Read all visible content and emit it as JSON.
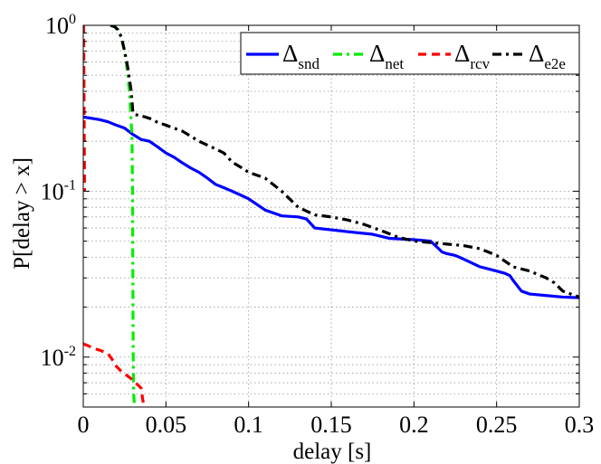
{
  "chart_data": {
    "type": "line",
    "title": "",
    "xlabel": "delay [s]",
    "ylabel": "P[delay > x]",
    "xlim": [
      0,
      0.3
    ],
    "ylim": [
      0.005,
      1
    ],
    "yscale": "log",
    "grid": true,
    "legend_position": "top-right",
    "x_ticks": [
      0,
      0.05,
      0.1,
      0.15,
      0.2,
      0.25,
      0.3
    ],
    "x_tick_labels": [
      "0",
      "0.05",
      "0.1",
      "0.15",
      "0.2",
      "0.25",
      "0.3"
    ],
    "y_ticks": [
      0.01,
      0.1,
      1
    ],
    "y_tick_labels": [
      {
        "base": "10",
        "exp": "-2"
      },
      {
        "base": "10",
        "exp": "-1"
      },
      {
        "base": "10",
        "exp": "0"
      }
    ],
    "series": [
      {
        "name": "snd",
        "name_symbol": "Δ",
        "color": "#0000ff",
        "dash": "solid",
        "x": [
          0,
          0.005,
          0.01,
          0.015,
          0.02,
          0.025,
          0.03,
          0.035,
          0.04,
          0.045,
          0.05,
          0.055,
          0.06,
          0.065,
          0.07,
          0.075,
          0.08,
          0.085,
          0.09,
          0.095,
          0.1,
          0.11,
          0.12,
          0.13,
          0.135,
          0.14,
          0.16,
          0.175,
          0.185,
          0.2,
          0.21,
          0.215,
          0.217,
          0.22,
          0.225,
          0.23,
          0.24,
          0.245,
          0.25,
          0.255,
          0.258,
          0.26,
          0.265,
          0.27,
          0.28,
          0.29,
          0.3
        ],
        "y": [
          0.28,
          0.275,
          0.27,
          0.262,
          0.25,
          0.24,
          0.22,
          0.205,
          0.2,
          0.185,
          0.17,
          0.16,
          0.148,
          0.138,
          0.13,
          0.12,
          0.11,
          0.105,
          0.1,
          0.095,
          0.09,
          0.077,
          0.071,
          0.07,
          0.068,
          0.06,
          0.057,
          0.055,
          0.052,
          0.051,
          0.05,
          0.045,
          0.043,
          0.042,
          0.041,
          0.039,
          0.035,
          0.034,
          0.033,
          0.032,
          0.031,
          0.029,
          0.025,
          0.024,
          0.0235,
          0.023,
          0.0228
        ]
      },
      {
        "name": "net",
        "name_symbol": "Δ",
        "color": "#00ee00",
        "dash": "dashdot",
        "x": [
          0.0165,
          0.019,
          0.021,
          0.023,
          0.025,
          0.026,
          0.027,
          0.028,
          0.029,
          0.0295,
          0.0298,
          0.03,
          0.0302,
          0.0305,
          0.031
        ],
        "y": [
          1,
          0.98,
          0.94,
          0.85,
          0.7,
          0.6,
          0.5,
          0.38,
          0.26,
          0.2,
          0.1,
          0.03,
          0.01,
          0.006,
          0.005
        ]
      },
      {
        "name": "rcv",
        "name_symbol": "Δ",
        "color": "#ff0000",
        "dash": "dashed",
        "x_upper": [
          0.0002,
          0.0004,
          0.0006,
          0.0008
        ],
        "y_upper": [
          1,
          0.5,
          0.2,
          0.1
        ],
        "x": [
          0,
          0.003,
          0.006,
          0.01,
          0.015,
          0.018,
          0.02,
          0.023,
          0.026,
          0.029,
          0.031,
          0.033,
          0.035,
          0.036,
          0.037
        ],
        "y": [
          0.012,
          0.0117,
          0.0113,
          0.011,
          0.0105,
          0.0095,
          0.0088,
          0.0082,
          0.0078,
          0.0074,
          0.0071,
          0.0068,
          0.0065,
          0.0055,
          0.005
        ]
      },
      {
        "name": "e2e",
        "name_symbol": "Δ",
        "color": "#000000",
        "dash": "dashdot",
        "x": [
          0.0165,
          0.019,
          0.021,
          0.023,
          0.025,
          0.027,
          0.029,
          0.03,
          0.031,
          0.035,
          0.04,
          0.045,
          0.05,
          0.06,
          0.07,
          0.08,
          0.085,
          0.09,
          0.095,
          0.1,
          0.11,
          0.12,
          0.13,
          0.14,
          0.15,
          0.16,
          0.17,
          0.18,
          0.19,
          0.2,
          0.21,
          0.22,
          0.23,
          0.235,
          0.24,
          0.25,
          0.26,
          0.27,
          0.28,
          0.285,
          0.29,
          0.3
        ],
        "y": [
          1,
          0.98,
          0.94,
          0.85,
          0.7,
          0.55,
          0.4,
          0.3,
          0.29,
          0.285,
          0.275,
          0.26,
          0.25,
          0.23,
          0.2,
          0.18,
          0.17,
          0.15,
          0.14,
          0.13,
          0.12,
          0.1,
          0.08,
          0.072,
          0.07,
          0.067,
          0.063,
          0.058,
          0.053,
          0.05,
          0.049,
          0.048,
          0.047,
          0.046,
          0.045,
          0.041,
          0.035,
          0.033,
          0.03,
          0.028,
          0.025,
          0.023
        ]
      }
    ]
  }
}
